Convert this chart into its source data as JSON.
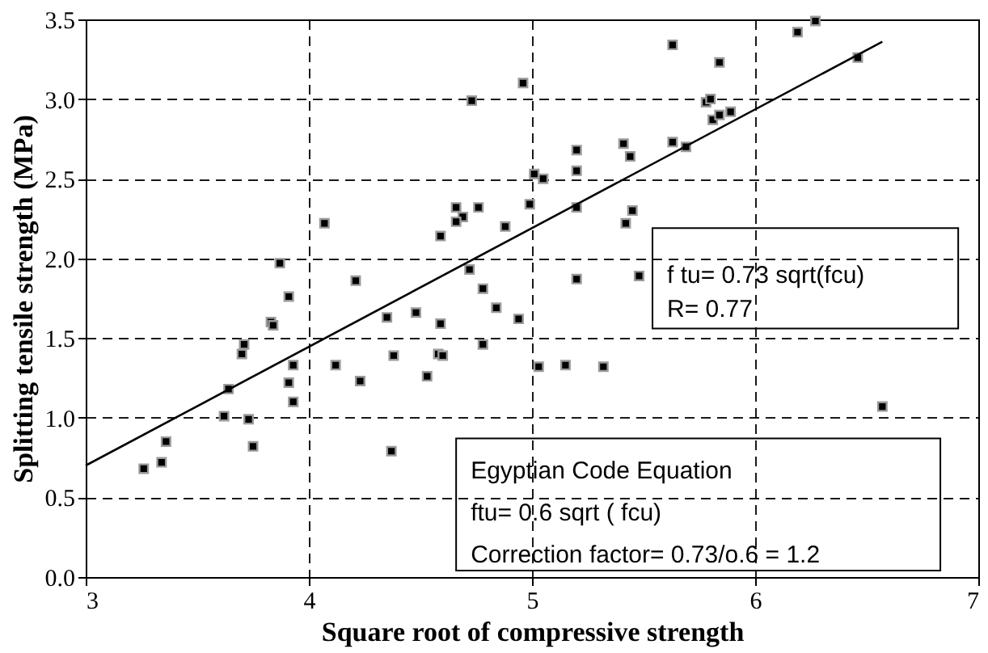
{
  "chart_data": {
    "type": "scatter",
    "xlabel": "Square root of compressive strength",
    "ylabel": "Splitting tensile strength (MPa)",
    "xlim": [
      3,
      7
    ],
    "xticks": [
      3,
      4,
      5,
      6,
      7
    ],
    "ylim": [
      0,
      3.5
    ],
    "yticks": [
      {
        "value": 0,
        "label": "0.0"
      },
      {
        "value": 0.5,
        "label": "0.5"
      },
      {
        "value": 1,
        "label": "1.0"
      },
      {
        "value": 1.5,
        "label": "1.5"
      },
      {
        "value": 2,
        "label": "2.0"
      },
      {
        "value": 2.5,
        "label": "2.5"
      },
      {
        "value": 3,
        "label": "3.0"
      },
      {
        "value": 3.5,
        "label": "3.5"
      }
    ],
    "grid": true,
    "annotations": [
      "f tu= 0.73 sqrt(fcu)\nR= 0.77",
      "Egyptian Code Equation\nftu= 0.6 sqrt ( fcu)\nCorrection factor= 0.73/o.6 = 1.2"
    ],
    "series": [
      {
        "marker": "square",
        "color": "#000000",
        "x": [
          4.73,
          4.07,
          4.66,
          4.69,
          4.66,
          4.76,
          4.59,
          4.88,
          3.87,
          4.21,
          4.72,
          4.78,
          4.84,
          3.91,
          3.83,
          3.84,
          4.35,
          4.48,
          4.59,
          3.71,
          4.78,
          3.7,
          3.93,
          4.12,
          3.91,
          3.93,
          4.23,
          4.38,
          4.58,
          4.6,
          4.53,
          3.64,
          3.62,
          3.73,
          3.75,
          3.36,
          3.34,
          3.26,
          4.37,
          5.63,
          5.84,
          6.19,
          6.27,
          6.46,
          4.96,
          5.78,
          5.8,
          5.81,
          5.84,
          5.89,
          5.63,
          5.69,
          5.2,
          5.2,
          5.41,
          5.44,
          5.01,
          5.05,
          4.99,
          5.2,
          5.45,
          5.42,
          5.2,
          5.48,
          4.94,
          5.03,
          5.15,
          5.32,
          6.57
        ],
        "values": [
          2.99,
          2.22,
          2.32,
          2.26,
          2.23,
          2.32,
          2.14,
          2.2,
          1.97,
          1.86,
          1.93,
          1.81,
          1.69,
          1.76,
          1.6,
          1.58,
          1.63,
          1.66,
          1.59,
          1.46,
          1.46,
          1.4,
          1.33,
          1.33,
          1.22,
          1.1,
          1.23,
          1.39,
          1.4,
          1.39,
          1.26,
          1.18,
          1.01,
          0.99,
          0.82,
          0.85,
          0.72,
          0.68,
          0.79,
          3.34,
          3.23,
          3.42,
          3.49,
          3.26,
          3.1,
          2.98,
          3.0,
          2.87,
          2.9,
          2.92,
          2.73,
          2.7,
          2.68,
          2.55,
          2.72,
          2.64,
          2.53,
          2.5,
          2.34,
          2.32,
          2.3,
          2.22,
          1.87,
          1.89,
          1.62,
          1.32,
          1.33,
          1.32,
          1.07
        ]
      },
      {
        "type": "line",
        "marker": "none",
        "color": "#000000",
        "line_style": "solid",
        "x": [
          3,
          6.57
        ],
        "values": [
          0.7,
          3.36
        ]
      }
    ]
  }
}
